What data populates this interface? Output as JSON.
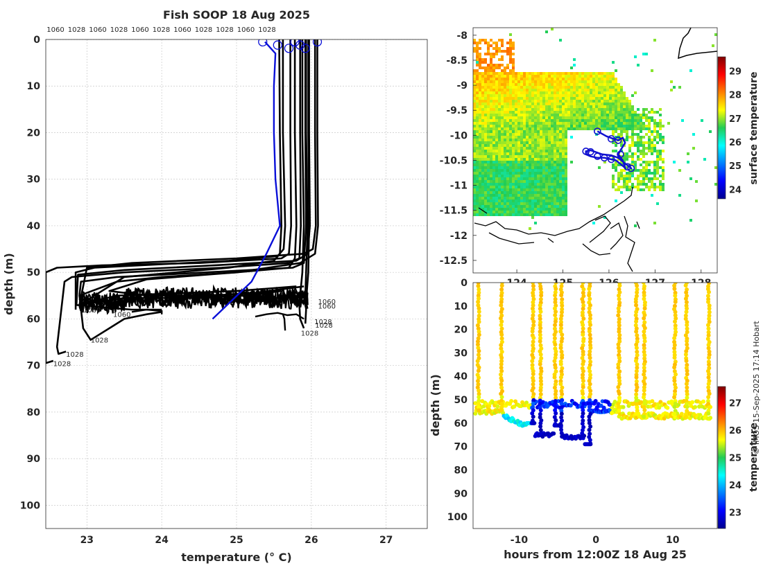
{
  "figure": {
    "title": "Fish SOOP 18 Aug 2025",
    "credit": "© IMOS 15-Sep-2025 17:14 Hobart"
  },
  "colors": {
    "profile_line": "#000000",
    "ref_profile": "#0a10d8",
    "track": "#1010d0",
    "frame": "#262626"
  },
  "chart_data": [
    {
      "id": "profiles",
      "type": "line",
      "title": "Fish SOOP 18 Aug 2025",
      "xlabel": "temperature (° C)",
      "ylabel": "depth (m)",
      "xlim": [
        22.45,
        27.55
      ],
      "ylim": [
        0,
        105
      ],
      "xticks": [
        23,
        24,
        25,
        26,
        27
      ],
      "yticks": [
        0,
        10,
        20,
        30,
        40,
        50,
        60,
        70,
        80,
        90,
        100
      ],
      "top_labels": [
        "1060",
        "1028",
        "1060",
        "1028",
        "1060",
        "1028",
        "1060",
        "1028",
        "1028",
        "1060",
        "1028"
      ],
      "reference_profile": {
        "temperature": [
          25.38,
          25.52,
          25.5,
          25.5,
          25.52,
          25.58,
          25.4,
          25.2,
          24.68
        ],
        "depth": [
          0.5,
          3,
          10,
          20,
          30,
          40,
          46,
          52,
          60
        ]
      },
      "bottom_labels": [
        {
          "text": "1028",
          "t": 22.55,
          "d": 69.5
        },
        {
          "text": "1028",
          "t": 22.72,
          "d": 67.5
        },
        {
          "text": "1028",
          "t": 23.05,
          "d": 64.5
        },
        {
          "text": "1060",
          "t": 22.95,
          "d": 58
        },
        {
          "text": "1060",
          "t": 23.35,
          "d": 59
        },
        {
          "text": "1060",
          "t": 26.09,
          "d": 56.2
        },
        {
          "text": "1060",
          "t": 26.09,
          "d": 57.2
        },
        {
          "text": "1028",
          "t": 26.04,
          "d": 60.5
        },
        {
          "text": "1028",
          "t": 26.05,
          "d": 61.3
        },
        {
          "text": "1028",
          "t": 25.86,
          "d": 63
        }
      ],
      "profiles": [
        {
          "name": "1060",
          "temperature": [
            25.62,
            25.62,
            25.65,
            25.63,
            25.55,
            24.9,
            23.1,
            22.85,
            22.85
          ],
          "depth": [
            0,
            20,
            40,
            45,
            46.5,
            47.5,
            49,
            50,
            58
          ]
        },
        {
          "name": "1028",
          "temperature": [
            25.72,
            25.72,
            25.73,
            25.7,
            25.6,
            24.5,
            23.2,
            22.6,
            22.45,
            22.45,
            22.55
          ],
          "depth": [
            0,
            20,
            40,
            46,
            47,
            48,
            48.5,
            49,
            50,
            69.5,
            69
          ]
        },
        {
          "name": "1060",
          "temperature": [
            25.85,
            25.85,
            25.86,
            25.84,
            25.7,
            24.8,
            23.5,
            22.8,
            22.7,
            22.6,
            22.62,
            22.72
          ],
          "depth": [
            0,
            20,
            40,
            47,
            48,
            49,
            50,
            51,
            52,
            66,
            67.5,
            67
          ]
        },
        {
          "name": "1028",
          "temperature": [
            25.92,
            25.92,
            25.93,
            25.9,
            25.75,
            24.6,
            23.4,
            22.92,
            22.9,
            22.95,
            23.05,
            23.3,
            23.5,
            23.8,
            24.0
          ],
          "depth": [
            0,
            20,
            40,
            48,
            49,
            50,
            51,
            52,
            55,
            62,
            64.5,
            62,
            60,
            59,
            58.5
          ]
        },
        {
          "name": "1060",
          "temperature": [
            25.97,
            25.97,
            25.98,
            25.95,
            25.8,
            24.7,
            23.5,
            22.88,
            22.86,
            23.2,
            23.6,
            24.0
          ],
          "depth": [
            0,
            20,
            40,
            46,
            47.5,
            48.5,
            49.5,
            50.5,
            57,
            57.5,
            58,
            58
          ]
        },
        {
          "name": "1028",
          "temperature": [
            26.05,
            26.05,
            26.06,
            26.02,
            25.9,
            25.0,
            23.6,
            23.0,
            22.9,
            23.4,
            24.2,
            25.0,
            25.8
          ],
          "depth": [
            0,
            20,
            40,
            45,
            46,
            47,
            48,
            49,
            57,
            55,
            54.5,
            54,
            53
          ]
        },
        {
          "name": "1060",
          "temperature": [
            26.08,
            26.08,
            26.09,
            26.05,
            25.85,
            25.0,
            23.8,
            23.3,
            23.8,
            24.6,
            25.2,
            25.9
          ],
          "depth": [
            0,
            20,
            40,
            46,
            48,
            50,
            51.5,
            54,
            55,
            55,
            54.5,
            53
          ]
        },
        {
          "name": "1028",
          "temperature": [
            25.57,
            25.58,
            25.6,
            25.58,
            25.5,
            24.9,
            24.2,
            23.5,
            22.9,
            23.5,
            24.4,
            25.1,
            25.6
          ],
          "depth": [
            0,
            20,
            40,
            46,
            47.5,
            49,
            50,
            51,
            57,
            55.5,
            55.5,
            55,
            54
          ]
        },
        {
          "name": "1060",
          "temperature": [
            25.78,
            25.78,
            25.8,
            25.78,
            25.7,
            25.0,
            24.0,
            23.4,
            22.9
          ],
          "depth": [
            0,
            20,
            40,
            47,
            49,
            50,
            51,
            52,
            55
          ]
        },
        {
          "name": "1028",
          "temperature": [
            25.88,
            25.88,
            25.9,
            25.88,
            25.85,
            25.84,
            25.85,
            25.9
          ],
          "depth": [
            0,
            20,
            40,
            50,
            55,
            57,
            60,
            62
          ]
        },
        {
          "name": "1028",
          "temperature": [
            25.93,
            25.93,
            25.95,
            25.93,
            25.92,
            25.93,
            25.92
          ],
          "depth": [
            0,
            20,
            40,
            50,
            55,
            58,
            61
          ]
        },
        {
          "name": "1060",
          "temperature": [
            25.96,
            25.96,
            25.97,
            25.96,
            25.94,
            25.95
          ],
          "depth": [
            0,
            20,
            40,
            50,
            54,
            57
          ]
        }
      ],
      "noise_band": {
        "t_from": 22.9,
        "t_to": 25.95,
        "depth_center": 55.5,
        "amplitude": 1.5
      },
      "deep_segments": [
        {
          "temperature": [
            23.6,
            23.8,
            24.0,
            24.0
          ],
          "depth": [
            58.5,
            58,
            58.3,
            59
          ]
        },
        {
          "temperature": [
            25.25,
            25.4,
            25.55,
            25.68,
            25.8,
            25.9
          ],
          "depth": [
            59.5,
            59,
            58.7,
            59.2,
            59,
            60
          ]
        },
        {
          "temperature": [
            25.62,
            25.64,
            25.65
          ],
          "depth": [
            59,
            60,
            62.5
          ]
        }
      ]
    },
    {
      "id": "sst_map",
      "type": "heatmap",
      "xticks": [
        "124",
        "125",
        "126",
        "127",
        "128"
      ],
      "xlim": [
        123.05,
        128.35
      ],
      "ylim": [
        -12.75,
        -7.85
      ],
      "yticks": [
        "-8",
        "-8.5",
        "-9",
        "-9.5",
        "-10",
        "-10.5",
        "-11",
        "-11.5",
        "-12",
        "-12.5"
      ],
      "colorbar": {
        "label": "surface temperature",
        "ticks": [
          "24",
          "25",
          "26",
          "27",
          "28",
          "29"
        ],
        "range": [
          23.6,
          29.6
        ]
      },
      "track": {
        "lon": [
          125.75,
          125.85,
          125.95,
          126.1,
          126.2,
          126.3,
          126.35,
          126.25,
          126.2,
          126.3,
          126.35,
          126.15,
          126.05,
          125.9,
          125.75,
          125.6,
          125.5,
          125.5,
          125.6,
          125.7,
          125.85,
          126.05,
          126.2,
          126.4,
          126.5
        ],
        "lat": [
          -9.92,
          -9.97,
          -10.02,
          -10.07,
          -10.1,
          -10.05,
          -10.15,
          -10.3,
          -10.38,
          -10.5,
          -10.65,
          -10.5,
          -10.48,
          -10.45,
          -10.45,
          -10.42,
          -10.38,
          -10.32,
          -10.3,
          -10.33,
          -10.38,
          -10.4,
          -10.45,
          -10.6,
          -10.67
        ]
      },
      "track_markers": {
        "lon": [
          125.75,
          126.05,
          126.2,
          125.5,
          125.6,
          125.75,
          125.9,
          126.05,
          126.25,
          126.4,
          126.48
        ],
        "lat": [
          -9.92,
          -10.07,
          -10.1,
          -10.32,
          -10.33,
          -10.42,
          -10.45,
          -10.48,
          -10.38,
          -10.63,
          -10.66
        ]
      }
    },
    {
      "id": "section",
      "type": "scatter",
      "xlabel": "hours from 12:00Z 18 Aug 25",
      "ylabel": "depth (m)",
      "xlim": [
        -16.0,
        15.8
      ],
      "ylim": [
        0,
        105
      ],
      "xticks": [
        -10,
        0,
        10
      ],
      "yticks": [
        0,
        10,
        20,
        30,
        40,
        50,
        60,
        70,
        80,
        90,
        100
      ],
      "colorbar": {
        "label": "temperature",
        "ticks": [
          "23",
          "24",
          "25",
          "26",
          "27"
        ],
        "range": [
          22.4,
          27.6
        ]
      },
      "dive_hours": [
        -15.3,
        -12.3,
        -8.2,
        -7.2,
        -5.3,
        -4.5,
        -1.7,
        -0.8,
        3.0,
        5.3,
        6.3,
        10.3,
        11.8,
        14.7
      ]
    }
  ]
}
